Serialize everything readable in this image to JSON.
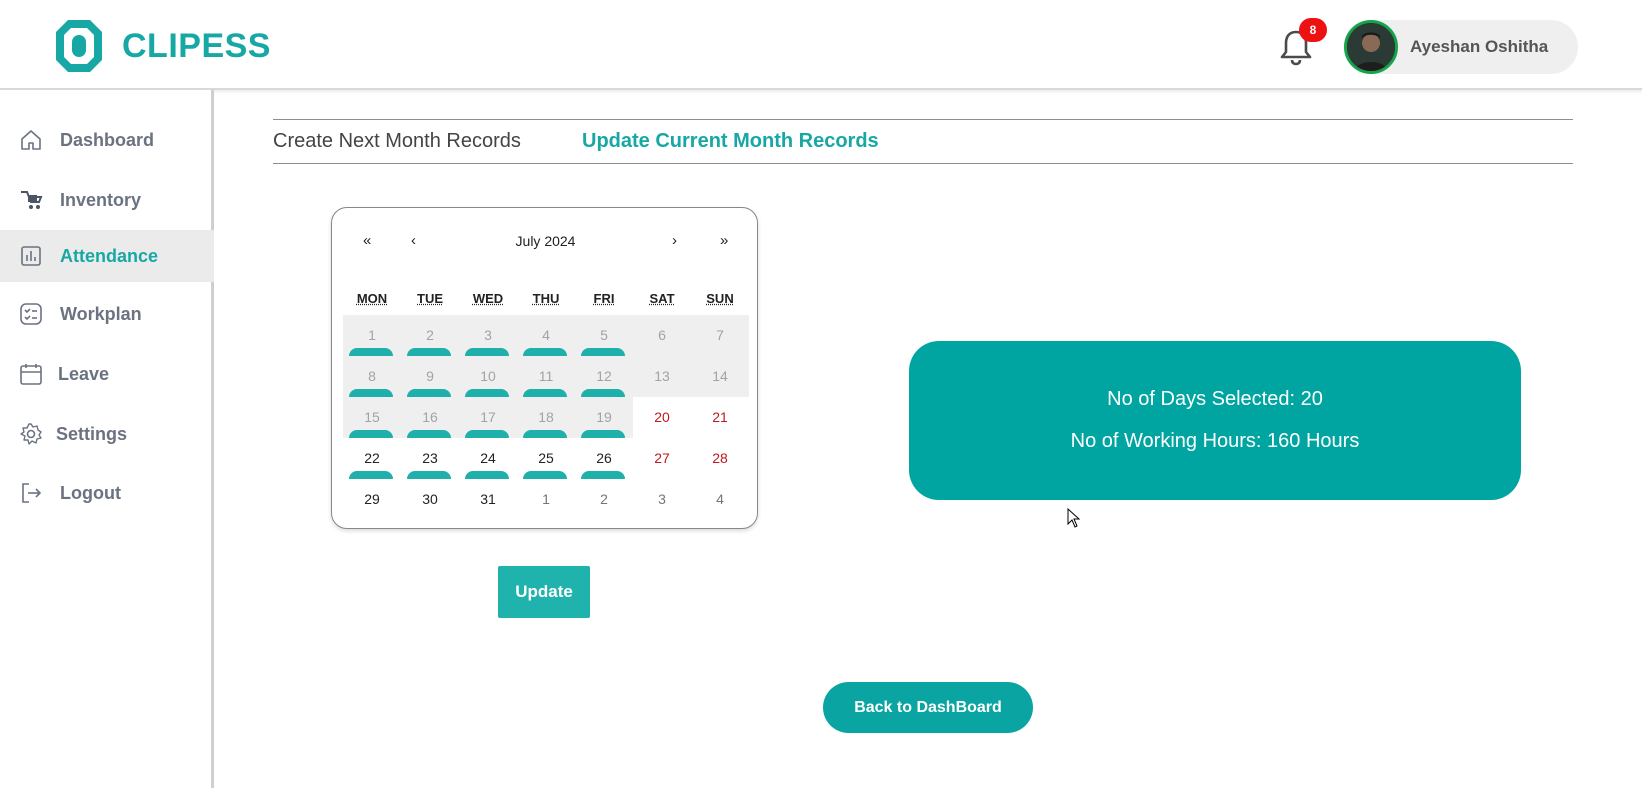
{
  "brand": {
    "name": "CLIPESS",
    "color": "#17a8a5"
  },
  "header": {
    "notification_count": "8",
    "user_name": "Ayeshan Oshitha"
  },
  "sidebar": {
    "items": [
      {
        "label": "Dashboard",
        "icon": "home-icon",
        "active": false
      },
      {
        "label": "Inventory",
        "icon": "inventory-icon",
        "active": false
      },
      {
        "label": "Attendance",
        "icon": "bar-chart-icon",
        "active": true
      },
      {
        "label": "Workplan",
        "icon": "checklist-icon",
        "active": false
      },
      {
        "label": "Leave",
        "icon": "calendar-icon",
        "active": false
      },
      {
        "label": "Settings",
        "icon": "gear-icon",
        "active": false
      },
      {
        "label": "Logout",
        "icon": "logout-icon",
        "active": false
      }
    ]
  },
  "tabs": [
    {
      "label": "Create Next Month Records",
      "active": false
    },
    {
      "label": "Update Current Month Records",
      "active": true
    }
  ],
  "calendar": {
    "month_label": "July 2024",
    "nav": {
      "prev_year": "«",
      "prev_month": "‹",
      "next_month": "›",
      "next_year": "»"
    },
    "weekdays": [
      "MON",
      "TUE",
      "WED",
      "THU",
      "FRI",
      "SAT",
      "SUN"
    ],
    "weeks": [
      [
        {
          "d": "1",
          "s": "disabled",
          "m": true
        },
        {
          "d": "2",
          "s": "disabled",
          "m": true
        },
        {
          "d": "3",
          "s": "disabled",
          "m": true
        },
        {
          "d": "4",
          "s": "disabled",
          "m": true
        },
        {
          "d": "5",
          "s": "disabled",
          "m": true
        },
        {
          "d": "6",
          "s": "disabled",
          "m": false
        },
        {
          "d": "7",
          "s": "disabled",
          "m": false
        }
      ],
      [
        {
          "d": "8",
          "s": "disabled",
          "m": true
        },
        {
          "d": "9",
          "s": "disabled",
          "m": true
        },
        {
          "d": "10",
          "s": "disabled",
          "m": true
        },
        {
          "d": "11",
          "s": "disabled",
          "m": true
        },
        {
          "d": "12",
          "s": "disabled",
          "m": true
        },
        {
          "d": "13",
          "s": "disabled",
          "m": false
        },
        {
          "d": "14",
          "s": "disabled",
          "m": false
        }
      ],
      [
        {
          "d": "15",
          "s": "disabled",
          "m": true
        },
        {
          "d": "16",
          "s": "disabled",
          "m": true
        },
        {
          "d": "17",
          "s": "disabled",
          "m": true
        },
        {
          "d": "18",
          "s": "disabled",
          "m": true
        },
        {
          "d": "19",
          "s": "disabled",
          "m": true
        },
        {
          "d": "20",
          "s": "weekend",
          "m": false
        },
        {
          "d": "21",
          "s": "weekend",
          "m": false
        }
      ],
      [
        {
          "d": "22",
          "s": "normal",
          "m": true
        },
        {
          "d": "23",
          "s": "normal",
          "m": true
        },
        {
          "d": "24",
          "s": "normal",
          "m": true
        },
        {
          "d": "25",
          "s": "normal",
          "m": true
        },
        {
          "d": "26",
          "s": "normal",
          "m": true
        },
        {
          "d": "27",
          "s": "weekend",
          "m": false
        },
        {
          "d": "28",
          "s": "weekend",
          "m": false
        }
      ],
      [
        {
          "d": "29",
          "s": "normal",
          "m": false
        },
        {
          "d": "30",
          "s": "normal",
          "m": false
        },
        {
          "d": "31",
          "s": "normal",
          "m": false
        },
        {
          "d": "1",
          "s": "neighbor",
          "m": false
        },
        {
          "d": "2",
          "s": "neighbor",
          "m": false
        },
        {
          "d": "3",
          "s": "neighbor",
          "m": false
        },
        {
          "d": "4",
          "s": "neighbor",
          "m": false
        }
      ]
    ]
  },
  "buttons": {
    "update_label": "Update",
    "back_label": "Back to DashBoard"
  },
  "stats": {
    "days_selected": "No of Days Selected: 20",
    "working_hours": "No of Working Hours: 160 Hours"
  },
  "colors": {
    "accent": "#17a8a5",
    "stats_bg": "#00a5a1",
    "selected_marker": "#20b0ab",
    "weekend_text": "#c0181f",
    "badge": "#ee1111"
  }
}
